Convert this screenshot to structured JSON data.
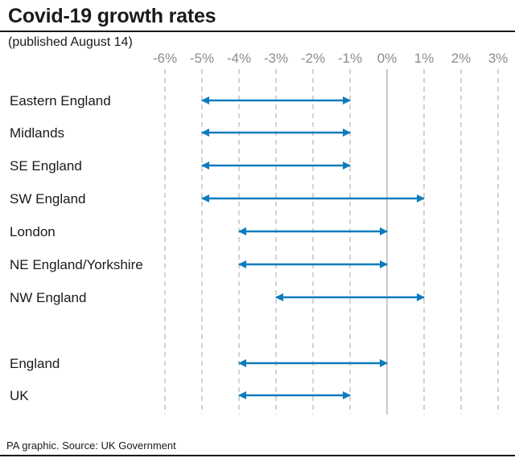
{
  "title": "Covid-19 growth rates",
  "subtitle": "(published August 14)",
  "source": "PA graphic. Source: UK Government",
  "colors": {
    "arrow": "#0d7cbd",
    "grid": "#b3b3b3",
    "zero": "#a6a6a6",
    "tick_label": "#8c8c8c"
  },
  "chart_data": {
    "type": "range",
    "xlim": [
      -6,
      3
    ],
    "ticks": [
      -6,
      -5,
      -4,
      -3,
      -2,
      -1,
      0,
      1,
      2,
      3
    ],
    "tick_labels": [
      "-6%",
      "-5%",
      "-4%",
      "-3%",
      "-2%",
      "-1%",
      "0%",
      "1%",
      "2%",
      "3%"
    ],
    "unit": "%",
    "series": [
      {
        "name": "Eastern England",
        "low": -5,
        "high": -1
      },
      {
        "name": "Midlands",
        "low": -5,
        "high": -1
      },
      {
        "name": "SE England",
        "low": -5,
        "high": -1
      },
      {
        "name": "SW England",
        "low": -5,
        "high": 1
      },
      {
        "name": "London",
        "low": -4,
        "high": 0
      },
      {
        "name": "NE England/Yorkshire",
        "low": -4,
        "high": 0
      },
      {
        "name": "NW England",
        "low": -3,
        "high": 1
      },
      {
        "name": "England",
        "low": -4,
        "high": 0
      },
      {
        "name": "UK",
        "low": -4,
        "high": -1
      }
    ]
  }
}
